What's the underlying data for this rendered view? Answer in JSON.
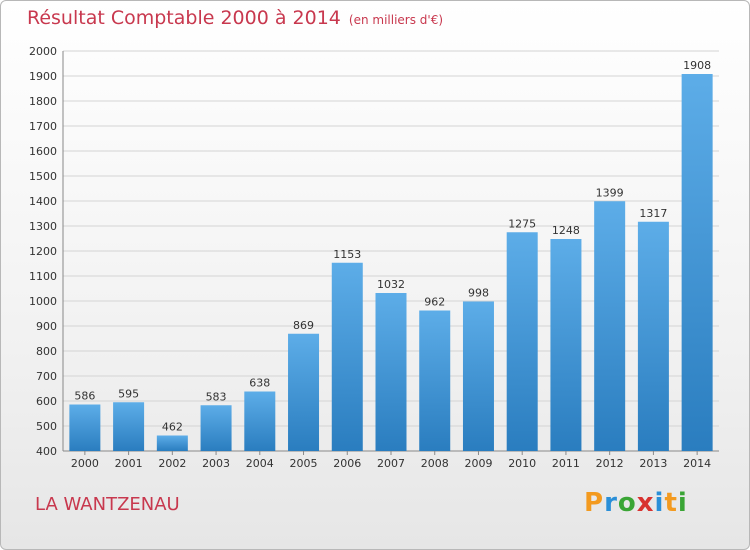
{
  "chart_data": {
    "type": "bar",
    "title": "Résultat Comptable 2000 à 2014",
    "subtitle": "(en milliers d'€)",
    "categories": [
      "2000",
      "2001",
      "2002",
      "2003",
      "2004",
      "2005",
      "2006",
      "2007",
      "2008",
      "2009",
      "2010",
      "2011",
      "2012",
      "2013",
      "2014"
    ],
    "values": [
      586,
      595,
      462,
      583,
      638,
      869,
      1153,
      1032,
      962,
      998,
      1275,
      1248,
      1399,
      1317,
      1908
    ],
    "ylim": [
      400,
      2000
    ],
    "yticks": [
      400,
      500,
      600,
      700,
      800,
      900,
      1000,
      1100,
      1200,
      1300,
      1400,
      1500,
      1600,
      1700,
      1800,
      1900,
      2000
    ],
    "xlabel": "",
    "ylabel": "",
    "grid": true,
    "colors": {
      "bar_light": "#5dade8",
      "bar_dark": "#2a7dbf",
      "grid": "#d4d4d4",
      "title": "#c8384e"
    }
  },
  "footer": {
    "commune": "LA WANTZENAU"
  },
  "logo": {
    "letters": [
      "P",
      "r",
      "o",
      "x",
      "i",
      "t",
      "i"
    ],
    "colors": [
      "#f39a1f",
      "#2a8fd8",
      "#3aa535",
      "#d8322f",
      "#2a8fd8",
      "#f39a1f",
      "#3aa535"
    ]
  }
}
